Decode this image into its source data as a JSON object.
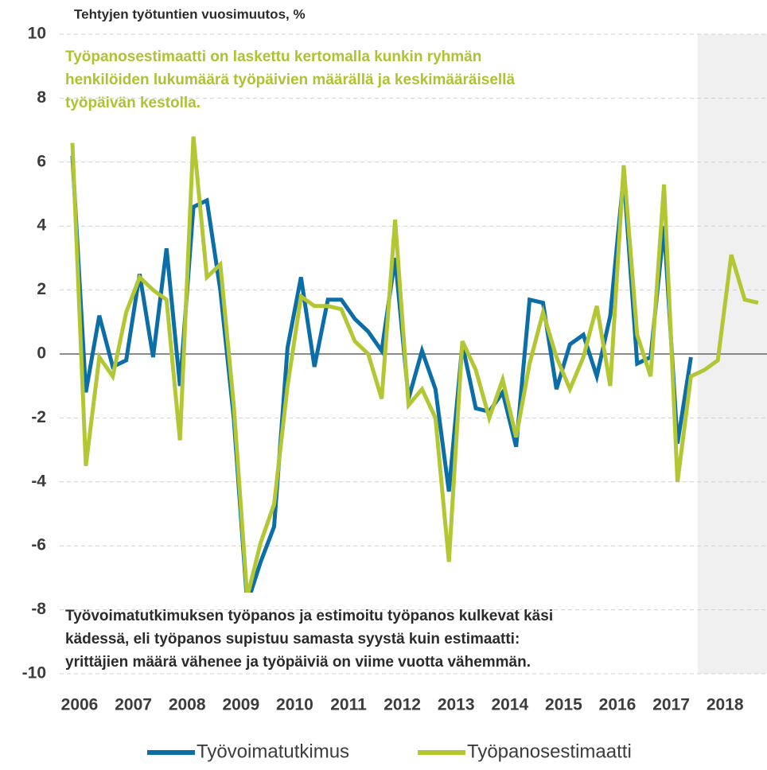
{
  "chart_data": {
    "type": "line",
    "title": "Tehtyjen työtuntien vuosimuutos, %",
    "annotations": [
      {
        "color": "#aec232",
        "lines": [
          "Työpanosestimaatti on laskettu kertomalla kunkin ryhmän",
          "henkilöiden lukumäärä työpäivien määrällä ja keskimääräisellä",
          "työpäivän kestolla."
        ]
      },
      {
        "color": "#2b2b2b",
        "lines": [
          "Työvoimatutkimuksen työpanos ja estimoitu työpanos kulkevat käsi",
          "kädessä, eli työpanos supistuu samasta syystä kuin estimaatti:",
          "yrittäjien määrä vähenee ja työpäiviä on viime vuotta vähemmän."
        ]
      }
    ],
    "categories": [
      2006,
      null,
      null,
      null,
      2007,
      null,
      null,
      null,
      2008,
      null,
      null,
      null,
      2009,
      null,
      null,
      null,
      2010,
      null,
      null,
      null,
      2011,
      null,
      null,
      null,
      2012,
      null,
      null,
      null,
      2013,
      null,
      null,
      null,
      2014,
      null,
      null,
      null,
      2015,
      null,
      null,
      null,
      2016,
      null,
      null,
      null,
      2017,
      null,
      null,
      null,
      2018,
      null,
      null,
      null
    ],
    "series": [
      {
        "name": "Työvoimatutkimus",
        "color": "#0b6ea6",
        "values": [
          6.2,
          -1.2,
          1.2,
          -0.4,
          -0.2,
          2.5,
          -0.1,
          3.3,
          -1.0,
          4.6,
          4.8,
          2.0,
          -2.0,
          -7.8,
          -6.5,
          -5.4,
          0.2,
          2.4,
          -0.4,
          1.7,
          1.7,
          1.1,
          0.7,
          0.1,
          3.0,
          -1.4,
          0.1,
          -1.1,
          -4.3,
          0.3,
          -1.7,
          -1.8,
          -1.2,
          -2.9,
          1.7,
          1.6,
          -1.1,
          0.3,
          0.6,
          -0.7,
          1.2,
          5.6,
          -0.3,
          -0.1,
          4.0,
          -2.8,
          -0.1,
          null,
          null,
          null,
          null,
          null
        ]
      },
      {
        "name": "Työpanosestimaatti",
        "color": "#b3c734",
        "values": [
          6.6,
          -3.5,
          -0.1,
          -0.7,
          1.3,
          2.4,
          2.0,
          1.7,
          -2.7,
          6.8,
          2.4,
          2.8,
          -1.6,
          -7.6,
          -5.9,
          -4.7,
          -1.0,
          1.8,
          1.5,
          1.5,
          1.4,
          0.4,
          0.0,
          -1.4,
          4.2,
          -1.6,
          -1.1,
          -2.0,
          -6.5,
          0.4,
          -0.5,
          -2.0,
          -0.8,
          -2.6,
          -0.3,
          1.3,
          -0.1,
          -1.1,
          -0.1,
          1.5,
          -1.0,
          5.9,
          0.6,
          -0.7,
          5.3,
          -4.0,
          -0.7,
          -0.5,
          -0.2,
          3.1,
          1.7,
          1.6
        ]
      }
    ],
    "ylim": [
      -10,
      10
    ],
    "yticks": [
      -10,
      -8,
      -6,
      -4,
      -2,
      0,
      2,
      4,
      6,
      8,
      10
    ],
    "grid": true
  }
}
